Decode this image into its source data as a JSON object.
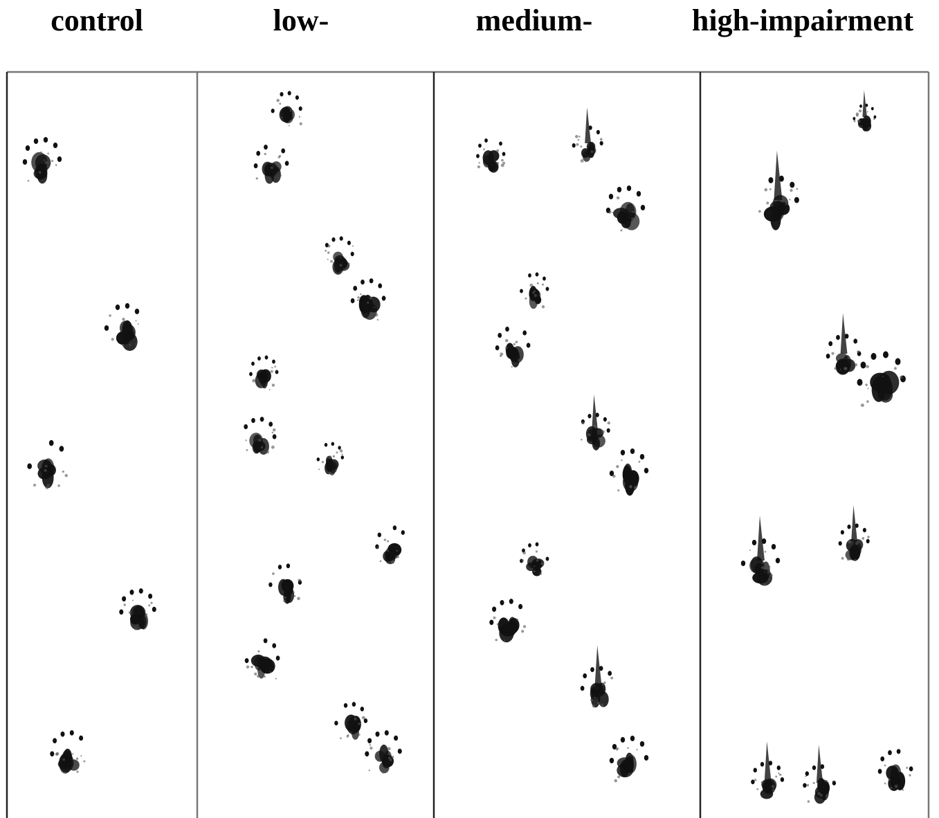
{
  "columns": {
    "control": "control",
    "low": "low-",
    "medium": "medium-",
    "high": "high-impairment"
  }
}
